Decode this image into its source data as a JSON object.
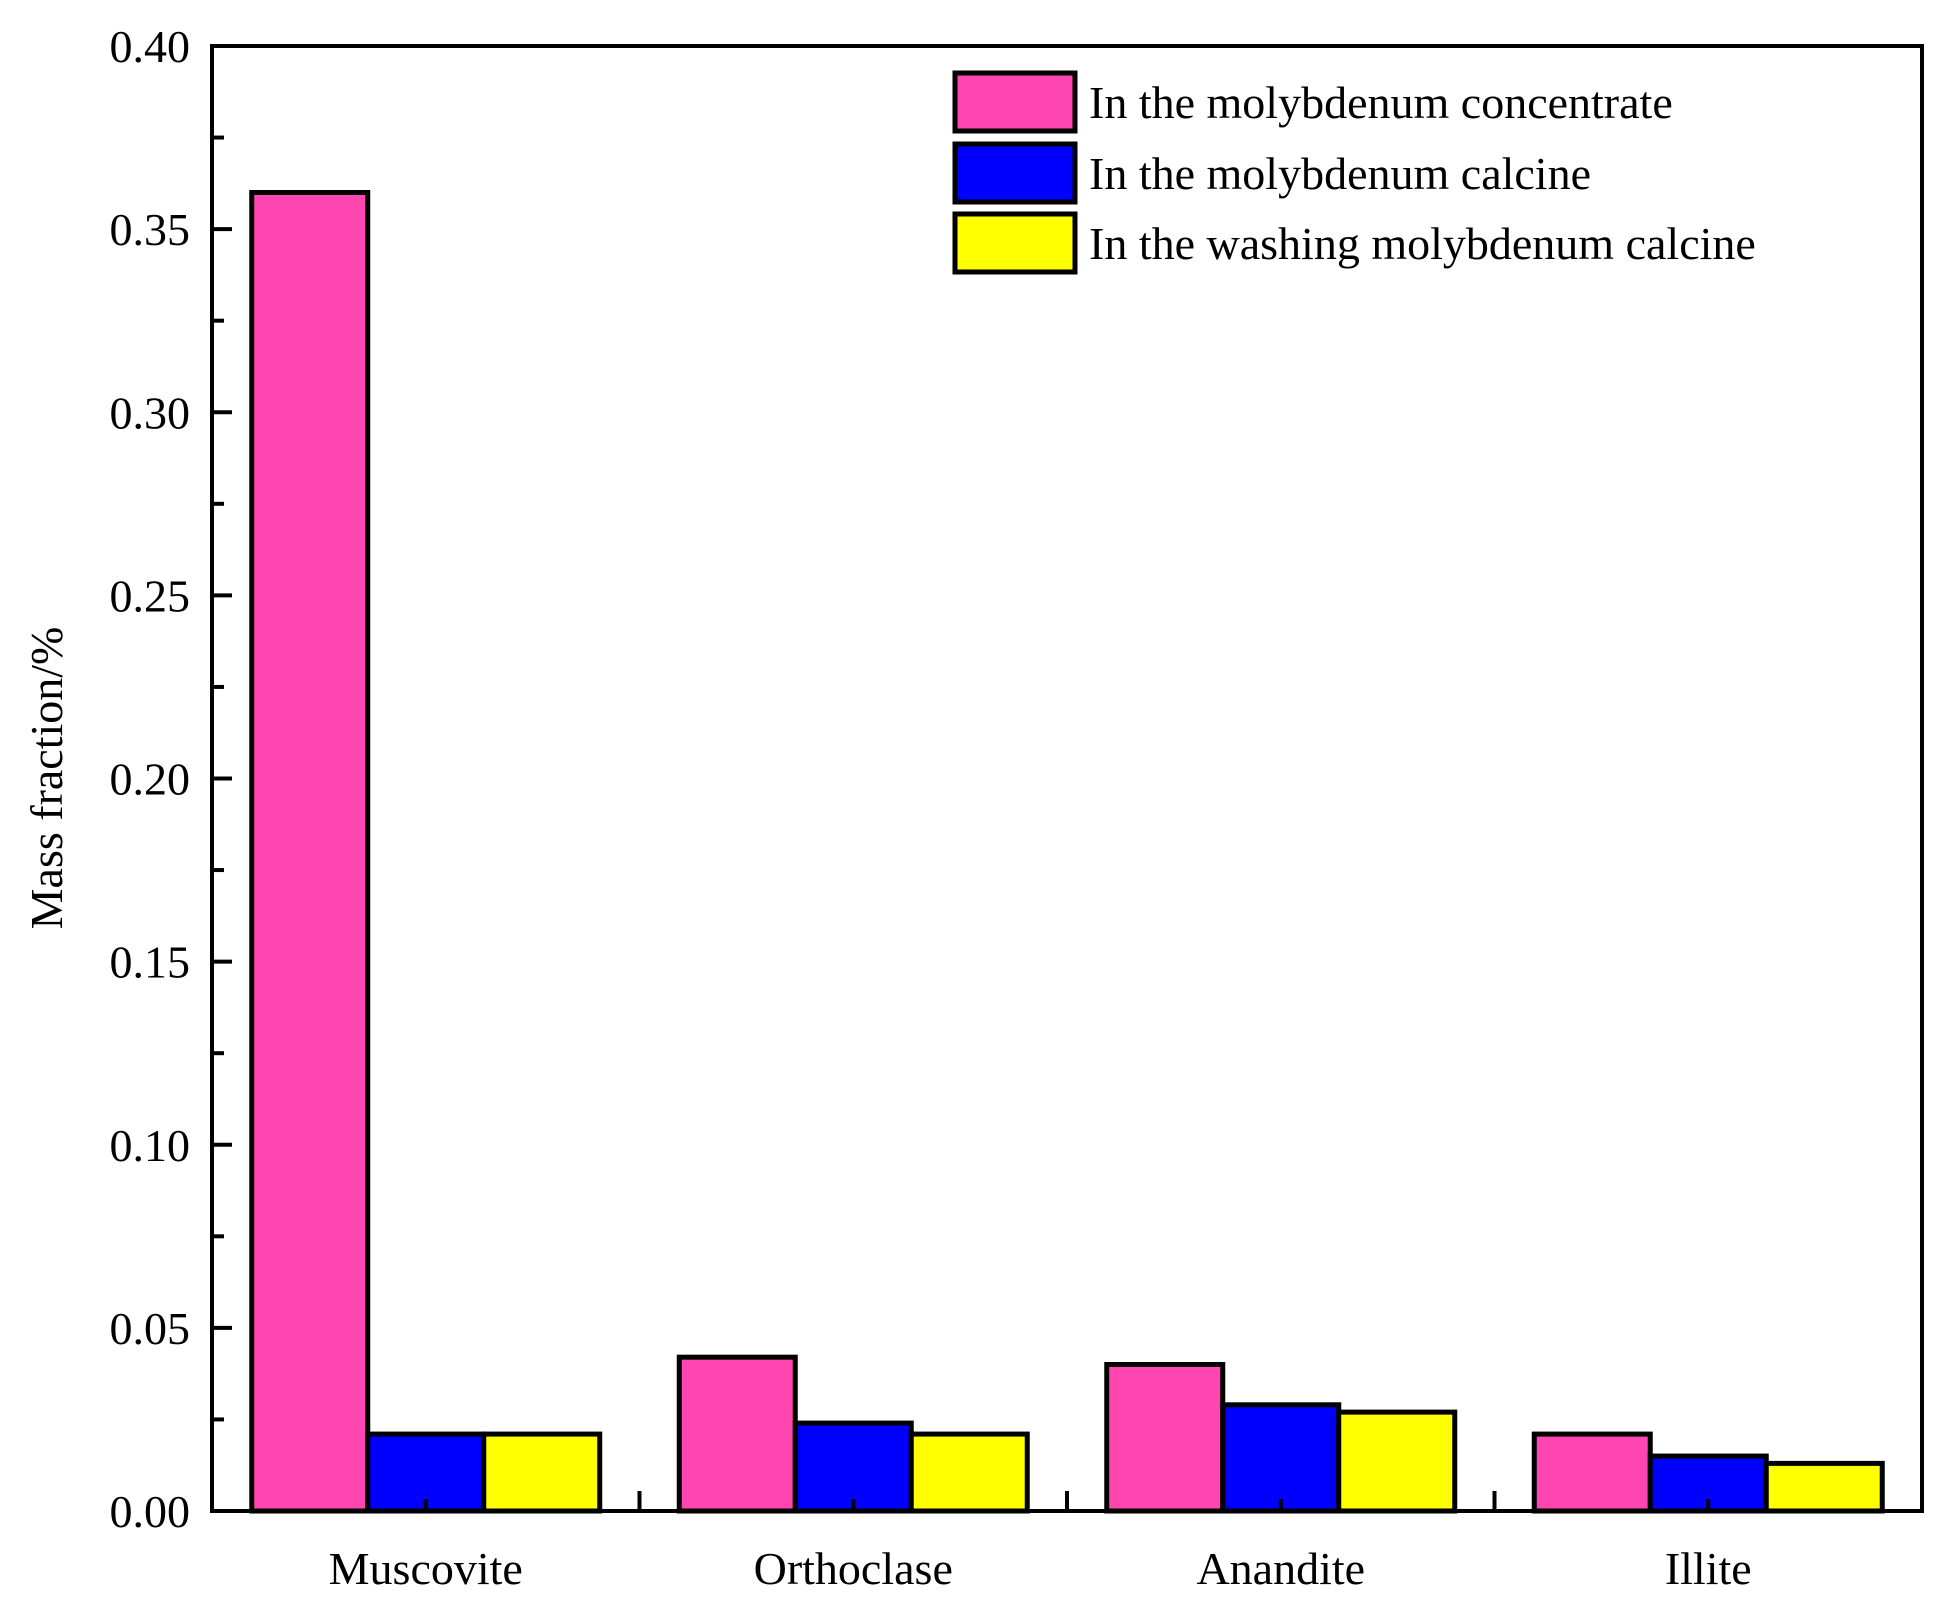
{
  "chart_data": {
    "type": "bar",
    "title": "",
    "xlabel": "",
    "ylabel": "Mass fraction/%",
    "ylim": [
      0,
      0.4
    ],
    "yticks": [
      "0.00",
      "0.05",
      "0.10",
      "0.15",
      "0.20",
      "0.25",
      "0.30",
      "0.35",
      "0.40"
    ],
    "categories": [
      "Muscovite",
      "Orthoclase",
      "Anandite",
      "Illite"
    ],
    "series": [
      {
        "name": "In the molybdenum concentrate",
        "color": "#ff45b0",
        "values": [
          0.36,
          0.042,
          0.04,
          0.021
        ]
      },
      {
        "name": "In the molybdenum calcine",
        "color": "#0000ff",
        "values": [
          0.021,
          0.024,
          0.029,
          0.015
        ]
      },
      {
        "name": "In the washing molybdenum calcine",
        "color": "#ffff00",
        "values": [
          0.021,
          0.021,
          0.027,
          0.013
        ]
      }
    ],
    "grid": false,
    "legend_position": "top-right"
  }
}
